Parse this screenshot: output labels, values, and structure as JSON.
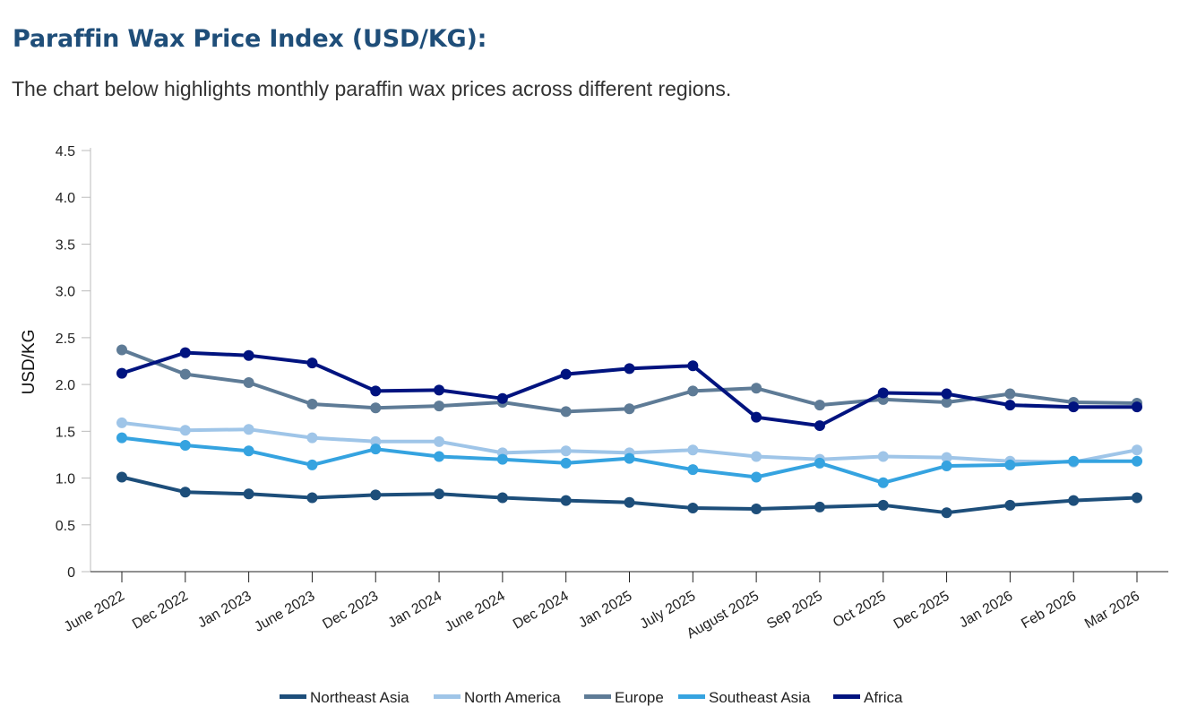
{
  "header": {
    "title": "Paraffin Wax Price Index (USD/KG):",
    "subtitle": "The chart below highlights monthly paraffin wax prices across different regions."
  },
  "chart_data": {
    "type": "line",
    "ylabel": "USD/KG",
    "ylim": [
      0,
      4.5
    ],
    "yticks": [
      "0",
      "0.5",
      "1.0",
      "1.5",
      "2.0",
      "2.5",
      "3.0",
      "3.5",
      "4.0",
      "4.5"
    ],
    "grid": false,
    "legend_position": "bottom",
    "categories": [
      "June 2022",
      "Dec 2022",
      "Jan 2023",
      "June 2023",
      "Dec 2023",
      "Jan 2024",
      "June 2024",
      "Dec 2024",
      "Jan 2025",
      "July 2025",
      "August 2025",
      "Sep 2025",
      "Oct 2025",
      "Dec 2025",
      "Jan 2026",
      "Feb 2026",
      "Mar 2026"
    ],
    "series": [
      {
        "name": "Northeast Asia",
        "color": "#1d4e7a",
        "values": [
          1.01,
          0.85,
          0.83,
          0.79,
          0.82,
          0.83,
          0.79,
          0.76,
          0.74,
          0.68,
          0.67,
          0.69,
          0.71,
          0.63,
          0.71,
          0.76,
          0.79
        ]
      },
      {
        "name": "North America",
        "color": "#9fc5e8",
        "values": [
          1.59,
          1.51,
          1.52,
          1.43,
          1.39,
          1.39,
          1.27,
          1.29,
          1.27,
          1.3,
          1.23,
          1.2,
          1.23,
          1.22,
          1.18,
          1.17,
          1.3
        ]
      },
      {
        "name": "Europe",
        "color": "#5e7b96",
        "values": [
          2.37,
          2.11,
          2.02,
          1.79,
          1.75,
          1.77,
          1.81,
          1.71,
          1.74,
          1.93,
          1.96,
          1.78,
          1.84,
          1.81,
          1.9,
          1.81,
          1.8
        ]
      },
      {
        "name": "Southeast Asia",
        "color": "#35a3e0",
        "values": [
          1.43,
          1.35,
          1.29,
          1.14,
          1.31,
          1.23,
          1.2,
          1.16,
          1.21,
          1.09,
          1.01,
          1.16,
          0.95,
          1.13,
          1.14,
          1.18,
          1.18
        ]
      },
      {
        "name": "Africa",
        "color": "#00137f",
        "values": [
          2.12,
          2.34,
          2.31,
          2.23,
          1.93,
          1.94,
          1.85,
          2.11,
          2.17,
          2.2,
          1.65,
          1.56,
          1.91,
          1.9,
          1.78,
          1.76,
          1.76
        ]
      }
    ]
  }
}
